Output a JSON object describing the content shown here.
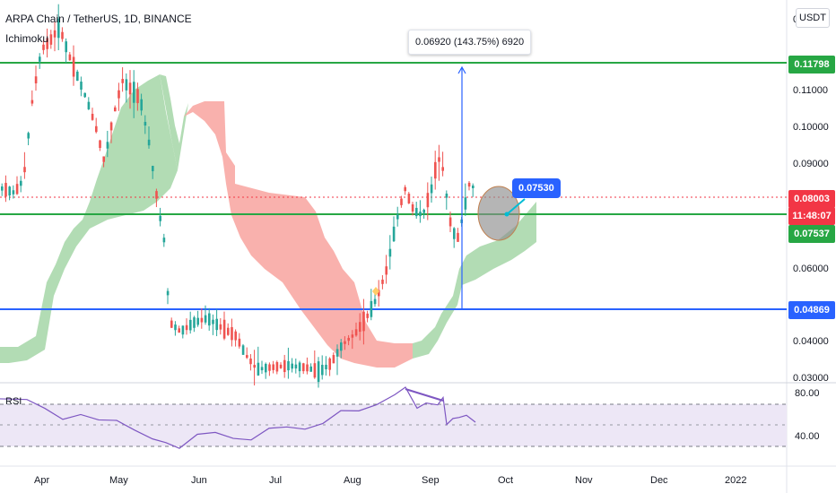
{
  "header": {
    "symbol_line": "ARPA Chain / TetherUS, 1D, BINANCE",
    "indicator": "Ichimoku"
  },
  "currency_button": "USDT",
  "measure_label": "0.06920 (143.75%) 6920",
  "callout_label": "0.07530",
  "price_axis": {
    "ticks": [
      "0.11000",
      "0.10000",
      "0.09000",
      "0.06000",
      "0.04000",
      "0.03000"
    ],
    "top_cut_label": "0"
  },
  "badges": [
    {
      "text": "0.11798",
      "color": "#27a744"
    },
    {
      "text": "0.08003",
      "color": "#f23645"
    },
    {
      "text": "11:48:07",
      "color": "#f23645"
    },
    {
      "text": "0.07537",
      "color": "#27a744"
    },
    {
      "text": "0.04869",
      "color": "#2962ff"
    }
  ],
  "rsi": {
    "label": "RSI",
    "ticks": [
      "80.00",
      "40.00"
    ]
  },
  "time_axis": [
    "Apr",
    "May",
    "Jun",
    "Jul",
    "Aug",
    "Sep",
    "Oct",
    "Nov",
    "Dec",
    "2022"
  ],
  "colors": {
    "green_line": "#27a744",
    "blue_line": "#2962ff",
    "up_candle": "#26a69a",
    "down_candle": "#ef5350",
    "cloud_green": "#a5d6a7",
    "cloud_red": "#f8a9a4",
    "rsi_line": "#7e57c2",
    "rsi_band": "#ede7f6"
  }
}
